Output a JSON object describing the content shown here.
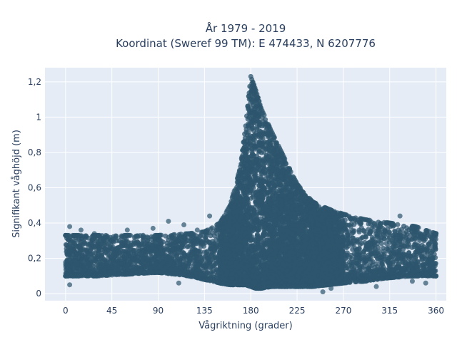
{
  "chart_data": {
    "type": "scatter",
    "title": "År 1979 - 2019",
    "subtitle": "Koordinat (Sweref 99 TM): E 474433, N 6207776",
    "xlabel": "Vågriktning (grader)",
    "ylabel": "Signifikant våghöjd (m)",
    "xlim": [
      -20,
      370
    ],
    "ylim": [
      -0.04,
      1.28
    ],
    "x_ticks": [
      0,
      45,
      90,
      135,
      180,
      225,
      270,
      315,
      360
    ],
    "x_tick_labels": [
      "0",
      "45",
      "90",
      "135",
      "180",
      "225",
      "270",
      "315",
      "360"
    ],
    "y_ticks": [
      0,
      0.2,
      0.4,
      0.6,
      0.8,
      1,
      1.2
    ],
    "y_tick_labels": [
      "0",
      "0,2",
      "0,4",
      "0,6",
      "0,8",
      "1",
      "1,2"
    ],
    "grid": true,
    "colors": {
      "marker": "#2e566e",
      "plot_bg": "#e5ecf6",
      "grid": "#ffffff",
      "text": "#2a3f5f"
    },
    "envelope": {
      "direction": [
        0,
        10,
        30,
        60,
        90,
        120,
        135,
        150,
        160,
        170,
        175,
        180,
        185,
        190,
        200,
        210,
        225,
        240,
        255,
        270,
        290,
        315,
        340,
        360
      ],
      "max_height": [
        0.33,
        0.33,
        0.33,
        0.33,
        0.33,
        0.34,
        0.35,
        0.4,
        0.5,
        0.72,
        0.95,
        1.23,
        1.15,
        1.05,
        0.92,
        0.8,
        0.62,
        0.52,
        0.48,
        0.45,
        0.42,
        0.4,
        0.38,
        0.34
      ],
      "min_height": [
        0.1,
        0.1,
        0.1,
        0.11,
        0.12,
        0.1,
        0.08,
        0.06,
        0.05,
        0.05,
        0.05,
        0.04,
        0.03,
        0.03,
        0.04,
        0.04,
        0.04,
        0.04,
        0.05,
        0.06,
        0.07,
        0.09,
        0.1,
        0.1
      ]
    },
    "outliers": [
      {
        "x": 4,
        "y": 0.38
      },
      {
        "x": 4,
        "y": 0.05
      },
      {
        "x": 15,
        "y": 0.36
      },
      {
        "x": 28,
        "y": 0.34
      },
      {
        "x": 60,
        "y": 0.36
      },
      {
        "x": 85,
        "y": 0.37
      },
      {
        "x": 100,
        "y": 0.41
      },
      {
        "x": 115,
        "y": 0.39
      },
      {
        "x": 128,
        "y": 0.36
      },
      {
        "x": 140,
        "y": 0.44
      },
      {
        "x": 258,
        "y": 0.03
      },
      {
        "x": 250,
        "y": 0.01
      },
      {
        "x": 302,
        "y": 0.04
      },
      {
        "x": 325,
        "y": 0.44
      },
      {
        "x": 337,
        "y": 0.38
      },
      {
        "x": 350,
        "y": 0.06
      },
      {
        "x": 337,
        "y": 0.07
      },
      {
        "x": 110,
        "y": 0.06
      }
    ]
  }
}
